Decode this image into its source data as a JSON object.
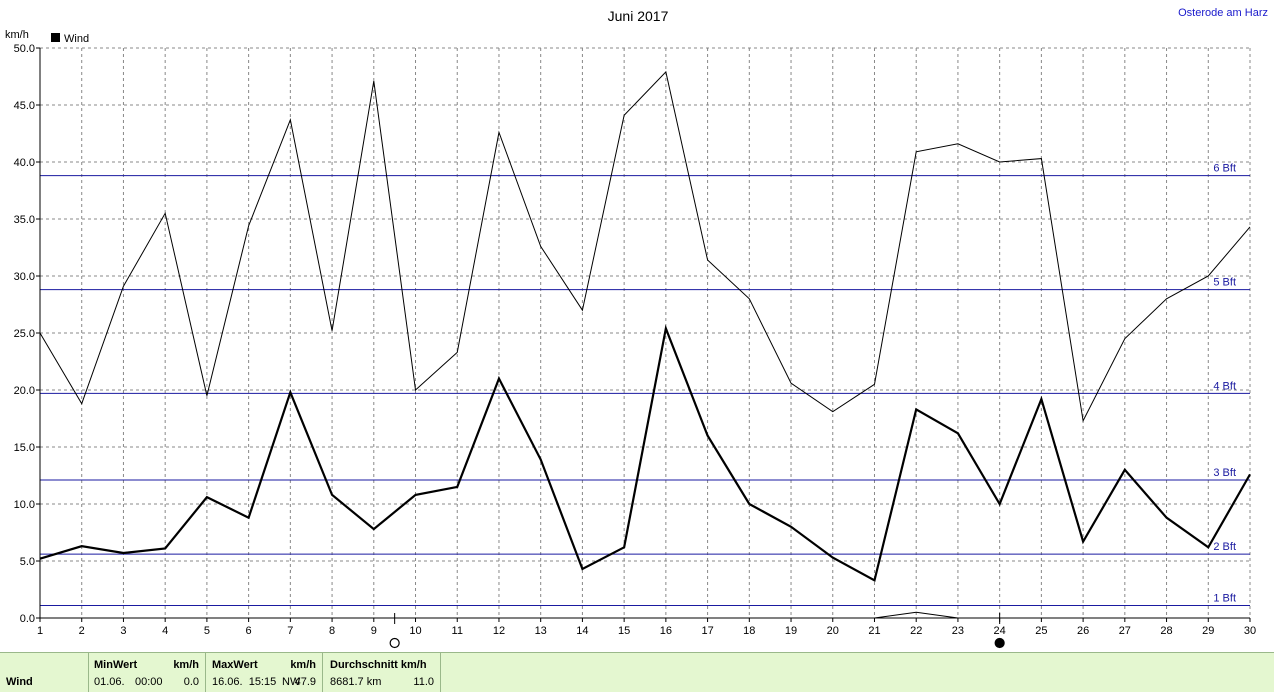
{
  "title": "Juni 2017",
  "location": "Osterode am Harz",
  "colors": {
    "line": "#000000",
    "grid": "#888888",
    "bft": "#1a1aa0",
    "footer_bg": "#e4f7d0"
  },
  "chart_data": {
    "type": "line",
    "title": "Juni 2017",
    "ylabel": "km/h",
    "ylim": [
      0,
      50
    ],
    "y_ticks": [
      "0.0",
      "5.0",
      "10.0",
      "15.0",
      "20.0",
      "25.0",
      "30.0",
      "35.0",
      "40.0",
      "45.0",
      "50.0"
    ],
    "x": [
      1,
      2,
      3,
      4,
      5,
      6,
      7,
      8,
      9,
      10,
      11,
      12,
      13,
      14,
      15,
      16,
      17,
      18,
      19,
      20,
      21,
      22,
      23,
      24,
      25,
      26,
      27,
      28,
      29,
      30
    ],
    "legend": "Wind",
    "legend_position": "top-left",
    "grid": true,
    "series": [
      {
        "name": "Wind",
        "role": "average",
        "values": [
          5.2,
          6.3,
          5.7,
          6.1,
          10.6,
          8.8,
          19.8,
          10.8,
          7.8,
          10.8,
          11.5,
          21.0,
          13.9,
          4.3,
          6.2,
          25.4,
          16.0,
          10.0,
          8.0,
          5.3,
          3.3,
          18.3,
          16.2,
          10.0,
          19.2,
          6.7,
          13.0,
          8.8,
          6.2,
          12.6
        ]
      },
      {
        "role": "max",
        "values": [
          25.0,
          18.8,
          29.1,
          35.5,
          19.5,
          34.4,
          43.7,
          25.2,
          47.1,
          20.0,
          23.3,
          42.6,
          32.6,
          27.0,
          44.1,
          47.9,
          31.4,
          28.0,
          20.6,
          18.1,
          20.5,
          40.9,
          41.6,
          40.0,
          40.3,
          17.3,
          24.5,
          28.0,
          30.0,
          34.3
        ]
      },
      {
        "role": "calm",
        "x": [
          21,
          22,
          23
        ],
        "values": [
          0.0,
          0.5,
          0.0
        ]
      }
    ],
    "beaufort_lines": [
      {
        "label": "1 Bft",
        "value": 1.1
      },
      {
        "label": "2 Bft",
        "value": 5.6
      },
      {
        "label": "3 Bft",
        "value": 12.1
      },
      {
        "label": "4 Bft",
        "value": 19.7
      },
      {
        "label": "5 Bft",
        "value": 28.8
      },
      {
        "label": "6 Bft",
        "value": 38.8
      }
    ],
    "moon_phases": [
      {
        "day": 9.5,
        "phase": "full"
      },
      {
        "day": 24,
        "phase": "new"
      }
    ]
  },
  "footer": {
    "row_label": "Wind",
    "min": {
      "header": "MinWert",
      "unit": "km/h",
      "date": "01.06.",
      "time": "00:00",
      "value": "0.0"
    },
    "max": {
      "header": "MaxWert",
      "unit": "km/h",
      "datetime": "16.06.  15:15",
      "dir": "NW",
      "value": "47.9"
    },
    "avg": {
      "header": "Durchschnitt km/h",
      "distance": "8681.7 km",
      "value": "11.0"
    }
  }
}
